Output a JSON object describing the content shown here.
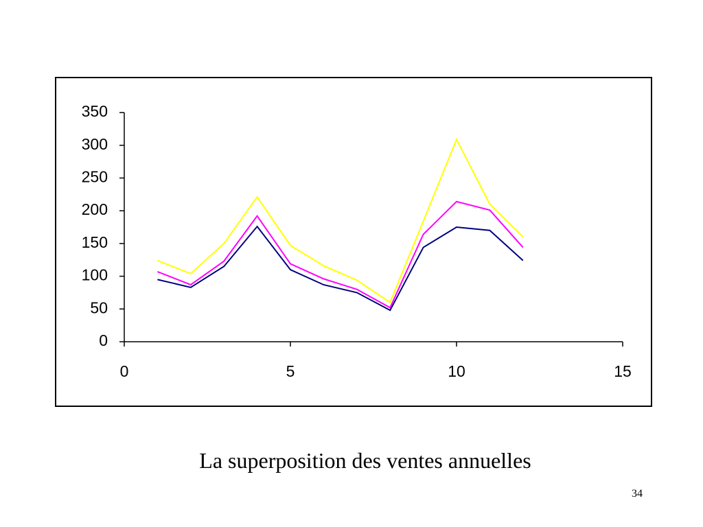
{
  "chart_data": {
    "type": "line",
    "x": [
      1,
      2,
      3,
      4,
      5,
      6,
      7,
      8,
      9,
      10,
      11,
      12
    ],
    "series": [
      {
        "color": "#000080",
        "values": [
          95,
          83,
          115,
          176,
          110,
          87,
          75,
          48,
          144,
          175,
          170,
          124
        ]
      },
      {
        "color": "#ff00ff",
        "values": [
          107,
          87,
          123,
          192,
          119,
          96,
          80,
          52,
          164,
          214,
          201,
          144
        ]
      },
      {
        "color": "#ffff00",
        "values": [
          124,
          104,
          150,
          221,
          147,
          116,
          94,
          60,
          184,
          309,
          210,
          160
        ]
      }
    ],
    "xlim": [
      0,
      15
    ],
    "xticks": [
      0,
      5,
      10,
      15
    ],
    "ylim": [
      0,
      350
    ],
    "yticks": [
      0,
      50,
      100,
      150,
      200,
      250,
      300,
      350
    ],
    "grid": false
  },
  "slide": {
    "caption": "La superposition des ventes annuelles",
    "page_number": "34"
  }
}
